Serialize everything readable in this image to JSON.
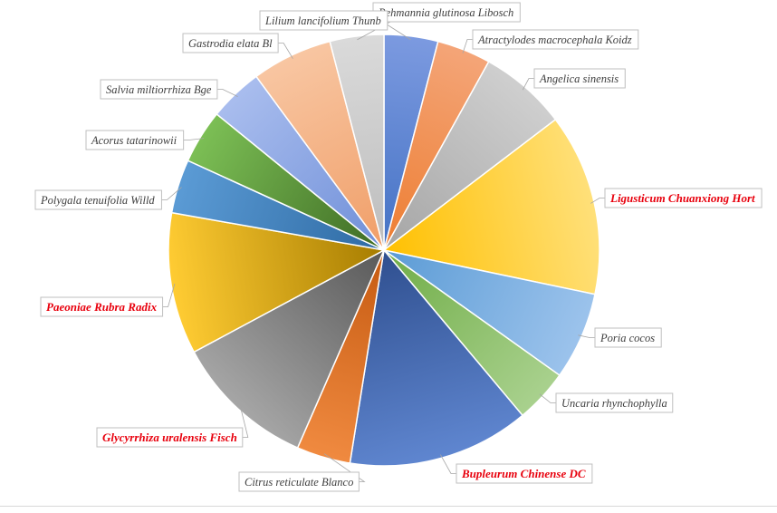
{
  "chart_data": {
    "type": "pie",
    "slices": [
      {
        "label": "Rehmannia glutinosa Libosch",
        "value": 4,
        "color_light": "#7c9ae0",
        "color_dark": "#4472c4",
        "highlight": false
      },
      {
        "label": "Atractylodes macrocephala Koidz",
        "value": 4,
        "color_light": "#f4a578",
        "color_dark": "#ed7d31",
        "highlight": false
      },
      {
        "label": "Angelica sinensis",
        "value": 6.5,
        "color_light": "#cfcfcf",
        "color_dark": "#a5a5a5",
        "highlight": false
      },
      {
        "label": "Ligusticum Chuanxiong Hort",
        "value": 13.5,
        "color_light": "#ffe07a",
        "color_dark": "#ffc000",
        "highlight": true
      },
      {
        "label": "Poria cocos",
        "value": 6.5,
        "color_light": "#9cc3ec",
        "color_dark": "#5b9bd5",
        "highlight": false
      },
      {
        "label": "Uncaria rhynchophylla",
        "value": 4,
        "color_light": "#a9d18e",
        "color_dark": "#70ad47",
        "highlight": false
      },
      {
        "label": "Bupleurum Chinense DC",
        "value": 13.5,
        "color_light": "#5f86d0",
        "color_dark": "#2f4f8f",
        "highlight": true
      },
      {
        "label": "Citrus reticulate Blanco",
        "value": 4,
        "color_light": "#f08a40",
        "color_dark": "#c55a11",
        "highlight": false
      },
      {
        "label": "Glycyrrhiza uralensis Fisch",
        "value": 10.5,
        "color_light": "#a6a6a6",
        "color_dark": "#595959",
        "highlight": true
      },
      {
        "label": "Paeoniae Rubra Radix",
        "value": 10.5,
        "color_light": "#ffcc33",
        "color_dark": "#a67c00",
        "highlight": true
      },
      {
        "label": "Polygala tenuifolia Willd",
        "value": 4,
        "color_light": "#5b9bd5",
        "color_dark": "#2e6aa3",
        "highlight": false
      },
      {
        "label": "Acorus tatarinowii",
        "value": 4,
        "color_light": "#7cbf55",
        "color_dark": "#3e6b24",
        "highlight": false
      },
      {
        "label": "Salvia miltiorrhiza Bge",
        "value": 4,
        "color_light": "#a9bdee",
        "color_dark": "#6f8fd8",
        "highlight": false
      },
      {
        "label": "Gastrodia elata Bl",
        "value": 6,
        "color_light": "#f8c6a2",
        "color_dark": "#f09e68",
        "highlight": false
      },
      {
        "label": "Lilium lancifolium Thunb",
        "value": 4,
        "color_light": "#dadada",
        "color_dark": "#bdbdbd",
        "highlight": false
      }
    ],
    "highlight_color": "#e8000d",
    "label_color": "#404040",
    "legend": "none"
  }
}
